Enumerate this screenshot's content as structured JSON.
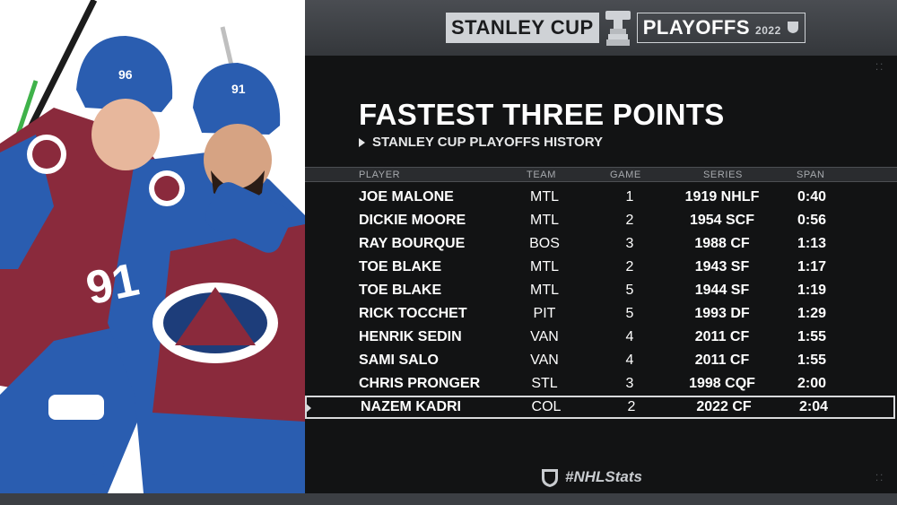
{
  "brand": {
    "word1": "STANLEY CUP",
    "word2": "PLAYOFFS",
    "year": "2022"
  },
  "title": "FASTEST THREE POINTS",
  "subtitle": "STANLEY CUP PLAYOFFS HISTORY",
  "columns": {
    "player": "PLAYER",
    "team": "TEAM",
    "game": "GAME",
    "series": "SERIES",
    "span": "SPAN"
  },
  "rows": [
    {
      "player": "JOE MALONE",
      "team": "MTL",
      "game": "1",
      "series": "1919 NHLF",
      "span": "0:40"
    },
    {
      "player": "DICKIE MOORE",
      "team": "MTL",
      "game": "2",
      "series": "1954 SCF",
      "span": "0:56"
    },
    {
      "player": "RAY BOURQUE",
      "team": "BOS",
      "game": "3",
      "series": "1988 CF",
      "span": "1:13"
    },
    {
      "player": "TOE BLAKE",
      "team": "MTL",
      "game": "2",
      "series": "1943 SF",
      "span": "1:17"
    },
    {
      "player": "TOE BLAKE",
      "team": "MTL",
      "game": "5",
      "series": "1944 SF",
      "span": "1:19"
    },
    {
      "player": "RICK TOCCHET",
      "team": "PIT",
      "game": "5",
      "series": "1993 DF",
      "span": "1:29"
    },
    {
      "player": "HENRIK SEDIN",
      "team": "VAN",
      "game": "4",
      "series": "2011 CF",
      "span": "1:55"
    },
    {
      "player": "SAMI SALO",
      "team": "VAN",
      "game": "4",
      "series": "2011 CF",
      "span": "1:55"
    },
    {
      "player": "CHRIS PRONGER",
      "team": "STL",
      "game": "3",
      "series": "1998 CQF",
      "span": "2:00"
    },
    {
      "player": "NAZEM KADRI",
      "team": "COL",
      "game": "2",
      "series": "2022 CF",
      "span": "2:04",
      "highlighted": true
    }
  ],
  "footer": {
    "hashtag": "#NHLStats"
  },
  "jerseys": {
    "left_number": "96",
    "right_number": "91",
    "front_number": "91"
  },
  "colors": {
    "avalanche_blue": "#2a5db0",
    "avalanche_burgundy": "#8a2a3c",
    "panel_bg": "#121314",
    "header_bg": "#42454a"
  }
}
